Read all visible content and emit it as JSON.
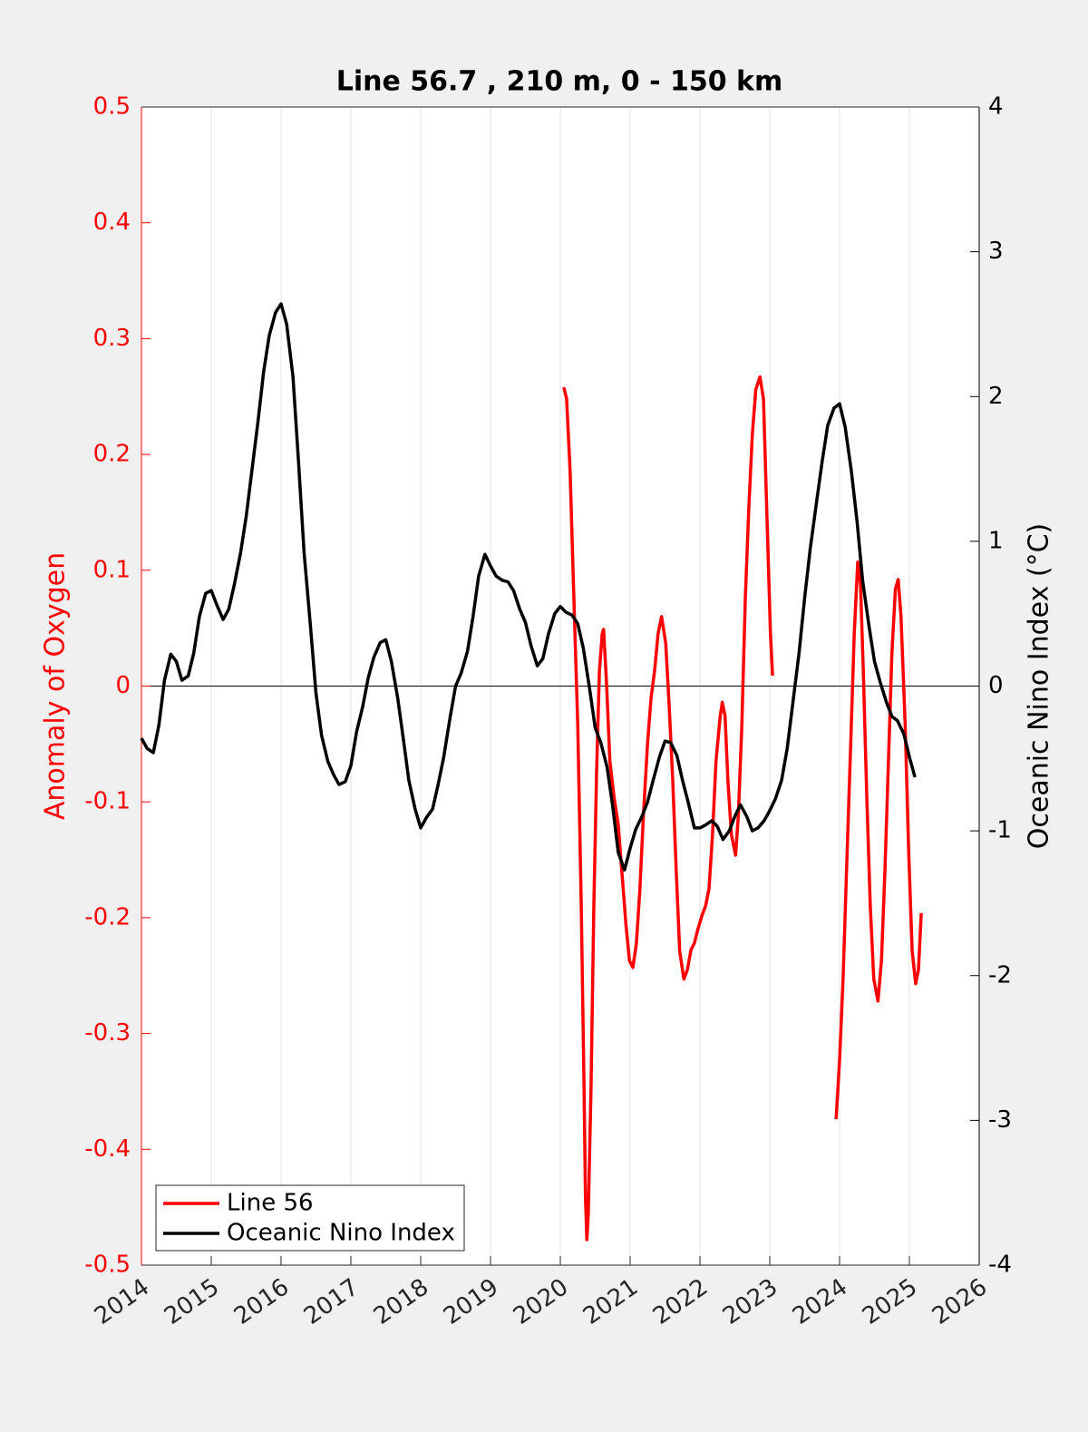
{
  "chart_data": {
    "type": "line",
    "title": "Line 56.7 , 210 m, 0 - 150 km",
    "ylabel": "Anomaly of Oxygen",
    "y2label": "Oceanic Nino Index (°C)",
    "ycolor": "#ff0000",
    "y2color": "#000000",
    "xlim": [
      2014,
      2026
    ],
    "xticks": [
      2014,
      2015,
      2016,
      2017,
      2018,
      2019,
      2020,
      2021,
      2022,
      2023,
      2024,
      2025,
      2026
    ],
    "ylim": [
      -0.5,
      0.5
    ],
    "yticks": [
      -0.5,
      -0.4,
      -0.3,
      -0.2,
      -0.1,
      0,
      0.1,
      0.2,
      0.3,
      0.4,
      0.5
    ],
    "y2lim": [
      -4,
      4
    ],
    "y2ticks": [
      -4,
      -3,
      -2,
      -1,
      0,
      1,
      2,
      3,
      4
    ],
    "xgrid": true,
    "zero_line": true,
    "legend": "lower left",
    "series": [
      {
        "name": "Line 56",
        "color": "#ff0000",
        "axis": "y",
        "x": [
          2020.05,
          2020.09,
          2020.14,
          2020.19,
          2020.25,
          2020.3,
          2020.34,
          2020.36,
          2020.38,
          2020.4,
          2020.44,
          2020.48,
          2020.52,
          2020.56,
          2020.6,
          2020.62,
          2020.66,
          2020.71,
          2020.77,
          2020.83,
          2020.88,
          2020.94,
          2020.99,
          2021.04,
          2021.09,
          2021.14,
          2021.19,
          2021.25,
          2021.3,
          2021.35,
          2021.4,
          2021.45,
          2021.51,
          2021.56,
          2021.61,
          2021.66,
          2021.71,
          2021.77,
          2021.82,
          2021.87,
          2021.92,
          2021.97,
          2022.03,
          2022.08,
          2022.13,
          2022.18,
          2022.23,
          2022.29,
          2022.32,
          2022.36,
          2022.4,
          2022.45,
          2022.51,
          2022.55,
          2022.6,
          2022.65,
          2022.7,
          2022.75,
          2022.8,
          2022.86,
          2022.91,
          2022.96,
          2023.01,
          2023.04,
          2023.5,
          2023.95,
          2024,
          2024.05,
          2024.1,
          2024.16,
          2024.21,
          2024.26,
          2024.3,
          2024.34,
          2024.39,
          2024.44,
          2024.49,
          2024.55,
          2024.6,
          2024.65,
          2024.7,
          2024.75,
          2024.8,
          2024.84,
          2024.88,
          2024.94,
          2024.99,
          2025.04,
          2025.09,
          2025.13,
          2025.17
        ],
        "values": [
          0.258,
          0.248,
          0.186,
          0.084,
          -0.034,
          -0.19,
          -0.347,
          -0.441,
          -0.478,
          -0.457,
          -0.347,
          -0.19,
          -0.073,
          0.013,
          0.045,
          0.049,
          0.005,
          -0.065,
          -0.096,
          -0.12,
          -0.159,
          -0.206,
          -0.237,
          -0.243,
          -0.222,
          -0.175,
          -0.112,
          -0.049,
          -0.01,
          0.013,
          0.045,
          0.06,
          0.037,
          -0.018,
          -0.081,
          -0.159,
          -0.229,
          -0.253,
          -0.245,
          -0.228,
          -0.222,
          -0.21,
          -0.198,
          -0.19,
          -0.175,
          -0.128,
          -0.065,
          -0.026,
          -0.014,
          -0.026,
          -0.081,
          -0.128,
          -0.146,
          -0.112,
          -0.034,
          0.076,
          0.154,
          0.217,
          0.256,
          0.267,
          0.248,
          0.146,
          0.045,
          0.009,
          null,
          -0.374,
          -0.323,
          -0.253,
          -0.159,
          -0.049,
          0.045,
          0.107,
          0.088,
          0.013,
          -0.096,
          -0.19,
          -0.253,
          -0.272,
          -0.237,
          -0.159,
          -0.065,
          0.029,
          0.084,
          0.092,
          0.06,
          -0.034,
          -0.143,
          -0.229,
          -0.257,
          -0.245,
          -0.196
        ]
      },
      {
        "name": "Oceanic Nino Index",
        "color": "#000000",
        "axis": "y2",
        "x": [
          2014,
          2014.08,
          2014.17,
          2014.25,
          2014.33,
          2014.42,
          2014.5,
          2014.58,
          2014.67,
          2014.75,
          2014.83,
          2014.92,
          2015,
          2015.08,
          2015.17,
          2015.25,
          2015.33,
          2015.42,
          2015.5,
          2015.58,
          2015.67,
          2015.75,
          2015.83,
          2015.92,
          2016,
          2016.08,
          2016.17,
          2016.25,
          2016.33,
          2016.42,
          2016.5,
          2016.58,
          2016.67,
          2016.75,
          2016.83,
          2016.92,
          2017,
          2017.08,
          2017.17,
          2017.25,
          2017.33,
          2017.42,
          2017.5,
          2017.58,
          2017.67,
          2017.75,
          2017.83,
          2017.92,
          2018,
          2018.08,
          2018.17,
          2018.25,
          2018.33,
          2018.42,
          2018.5,
          2018.58,
          2018.67,
          2018.75,
          2018.83,
          2018.92,
          2019,
          2019.08,
          2019.17,
          2019.25,
          2019.33,
          2019.42,
          2019.5,
          2019.58,
          2019.67,
          2019.75,
          2019.83,
          2019.92,
          2020,
          2020.08,
          2020.17,
          2020.25,
          2020.33,
          2020.42,
          2020.5,
          2020.58,
          2020.67,
          2020.75,
          2020.83,
          2020.92,
          2021,
          2021.08,
          2021.17,
          2021.25,
          2021.33,
          2021.42,
          2021.5,
          2021.58,
          2021.67,
          2021.75,
          2021.83,
          2021.92,
          2022,
          2022.08,
          2022.17,
          2022.25,
          2022.33,
          2022.42,
          2022.5,
          2022.58,
          2022.67,
          2022.75,
          2022.83,
          2022.92,
          2023,
          2023.08,
          2023.17,
          2023.25,
          2023.33,
          2023.42,
          2023.5,
          2023.58,
          2023.67,
          2023.75,
          2023.83,
          2023.92,
          2024,
          2024.08,
          2024.17,
          2024.25,
          2024.33,
          2024.42,
          2024.5,
          2024.58,
          2024.67,
          2024.75,
          2024.83,
          2024.92,
          2025,
          2025.08
        ],
        "values": [
          -0.36,
          -0.43,
          -0.46,
          -0.27,
          0.04,
          0.22,
          0.17,
          0.04,
          0.07,
          0.23,
          0.48,
          0.64,
          0.66,
          0.56,
          0.46,
          0.53,
          0.7,
          0.92,
          1.17,
          1.48,
          1.83,
          2.17,
          2.42,
          2.58,
          2.64,
          2.5,
          2.14,
          1.55,
          0.92,
          0.42,
          -0.05,
          -0.34,
          -0.52,
          -0.61,
          -0.68,
          -0.66,
          -0.55,
          -0.32,
          -0.14,
          0.06,
          0.2,
          0.3,
          0.32,
          0.17,
          -0.08,
          -0.36,
          -0.65,
          -0.85,
          -0.98,
          -0.91,
          -0.85,
          -0.68,
          -0.49,
          -0.22,
          0,
          0.09,
          0.24,
          0.48,
          0.76,
          0.91,
          0.83,
          0.76,
          0.73,
          0.72,
          0.66,
          0.53,
          0.44,
          0.28,
          0.14,
          0.19,
          0.36,
          0.5,
          0.55,
          0.51,
          0.49,
          0.43,
          0.26,
          -0.02,
          -0.29,
          -0.39,
          -0.56,
          -0.83,
          -1.15,
          -1.27,
          -1.12,
          -0.99,
          -0.9,
          -0.8,
          -0.65,
          -0.49,
          -0.38,
          -0.39,
          -0.48,
          -0.65,
          -0.8,
          -0.98,
          -0.98,
          -0.96,
          -0.93,
          -0.97,
          -1.06,
          -1,
          -0.9,
          -0.82,
          -0.9,
          -1,
          -0.98,
          -0.93,
          -0.86,
          -0.78,
          -0.65,
          -0.43,
          -0.12,
          0.23,
          0.61,
          0.95,
          1.27,
          1.55,
          1.8,
          1.92,
          1.95,
          1.79,
          1.48,
          1.14,
          0.73,
          0.42,
          0.17,
          0.03,
          -0.11,
          -0.21,
          -0.24,
          -0.33,
          -0.49,
          -0.63
        ]
      }
    ]
  }
}
